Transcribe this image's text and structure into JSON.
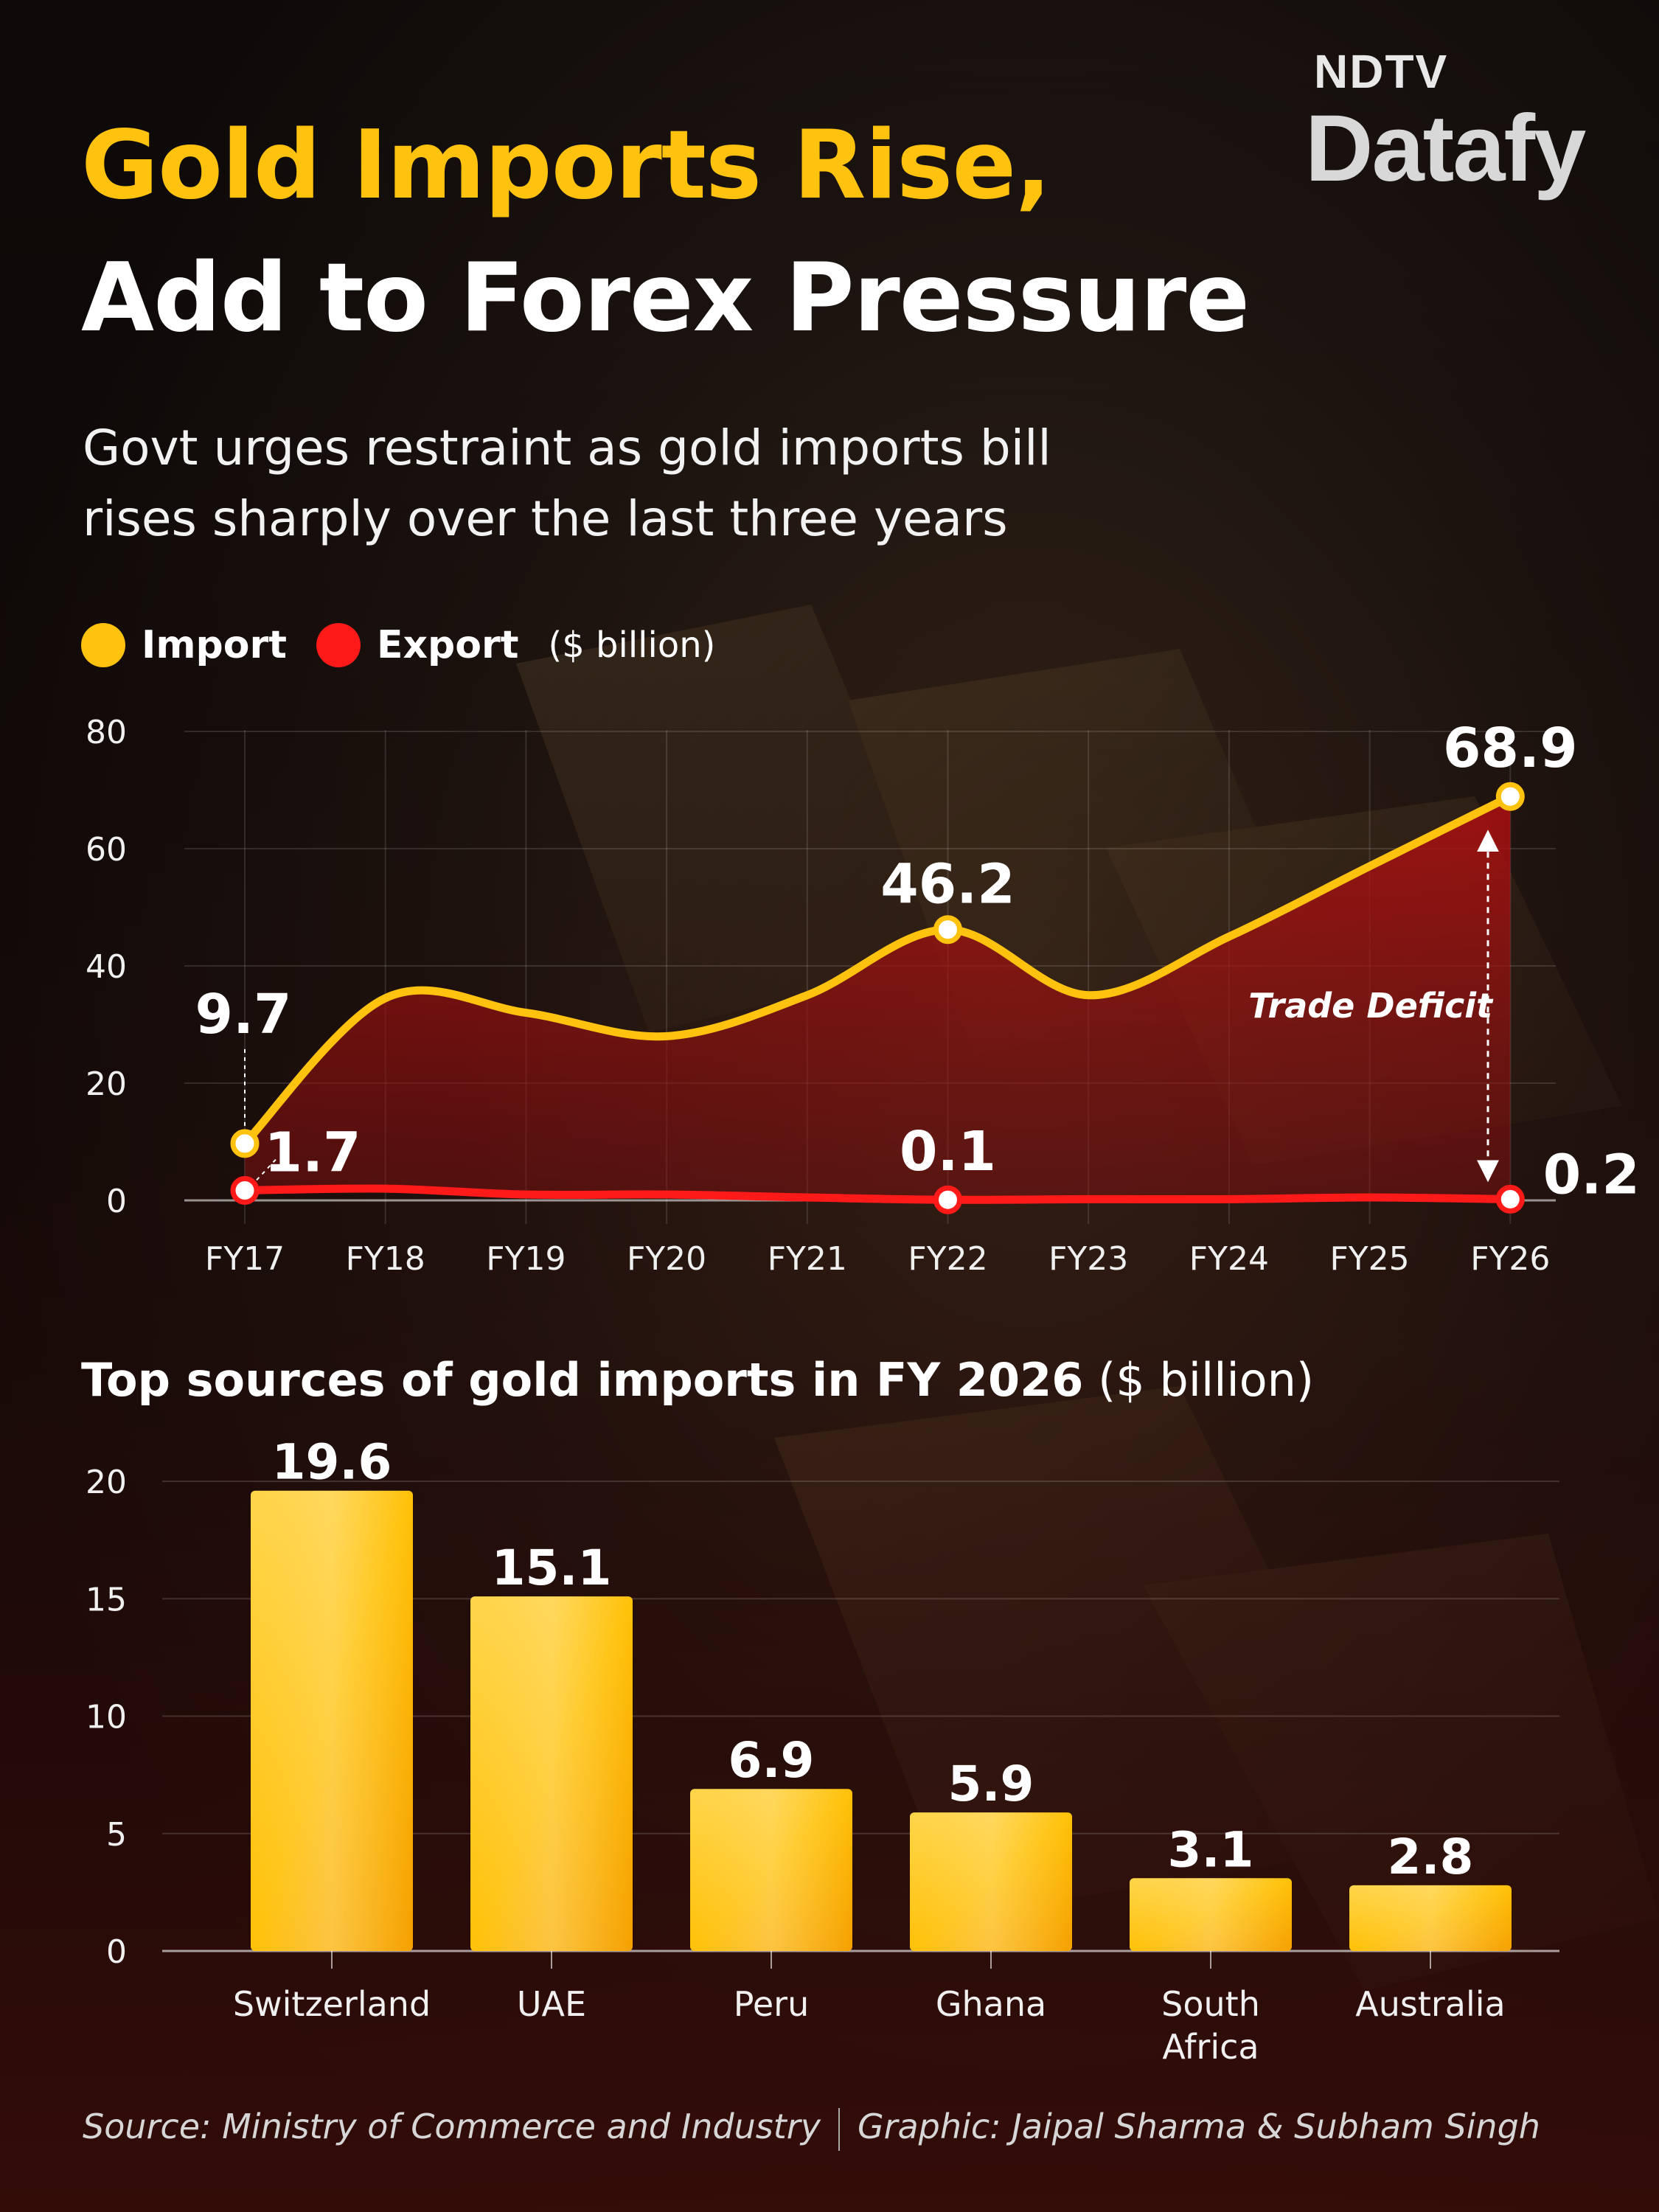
{
  "brand": {
    "top": "NDTV",
    "bottom": "Datafy"
  },
  "title_line1": "Gold Imports Rise,",
  "title_line2": "Add to Forex Pressure",
  "subtitle_line1": "Govt urges restraint as gold imports bill",
  "subtitle_line2": "rises sharply over the last three years",
  "colors": {
    "import": "#ffc20e",
    "export": "#ff1a1a",
    "deficit_fill": "#8b1010",
    "bar": "#ffc107",
    "accent_yellow": "#ffc20e"
  },
  "legend": {
    "import": "Import",
    "export": "Export",
    "unit": "($ billion)"
  },
  "chart_data": [
    {
      "type": "line",
      "title": "",
      "unit": "$ billion",
      "x": [
        "FY17",
        "FY18",
        "FY19",
        "FY20",
        "FY21",
        "FY22",
        "FY23",
        "FY24",
        "FY25",
        "FY26"
      ],
      "series": [
        {
          "name": "Import",
          "values": [
            9.7,
            34.5,
            32.0,
            28.0,
            35.0,
            46.2,
            35.0,
            45.0,
            57.0,
            68.9
          ]
        },
        {
          "name": "Export",
          "values": [
            1.7,
            2.0,
            1.0,
            1.0,
            0.5,
            0.1,
            0.2,
            0.2,
            0.5,
            0.2
          ]
        }
      ],
      "labeled_points": [
        {
          "x": "FY17",
          "series": "Import",
          "label": "9.7"
        },
        {
          "x": "FY17",
          "series": "Export",
          "label": "1.7"
        },
        {
          "x": "FY22",
          "series": "Import",
          "label": "46.2"
        },
        {
          "x": "FY22",
          "series": "Export",
          "label": "0.1"
        },
        {
          "x": "FY26",
          "series": "Import",
          "label": "68.9"
        },
        {
          "x": "FY26",
          "series": "Export",
          "label": "0.2"
        }
      ],
      "yticks": [
        "0",
        "20",
        "40",
        "60",
        "80"
      ],
      "ylim": [
        0,
        80
      ],
      "annotation": "Trade Deficit",
      "grid": true
    },
    {
      "type": "bar",
      "title": "Top sources of gold imports in FY 2026",
      "title_unit": "($ billion)",
      "categories": [
        [
          "Switzerland"
        ],
        [
          "UAE"
        ],
        [
          "Peru"
        ],
        [
          "Ghana"
        ],
        [
          "South",
          "Africa"
        ],
        [
          "Australia"
        ]
      ],
      "values": [
        19.6,
        15.1,
        6.9,
        5.9,
        3.1,
        2.8
      ],
      "labels": [
        "19.6",
        "15.1",
        "6.9",
        "5.9",
        "3.1",
        "2.8"
      ],
      "yticks": [
        "0",
        "5",
        "10",
        "15",
        "20"
      ],
      "ylim": [
        0,
        20
      ],
      "grid": true
    }
  ],
  "footer": {
    "source": "Source: Ministry of Commerce and Industry",
    "graphic": "Graphic: Jaipal Sharma & Subham Singh"
  }
}
